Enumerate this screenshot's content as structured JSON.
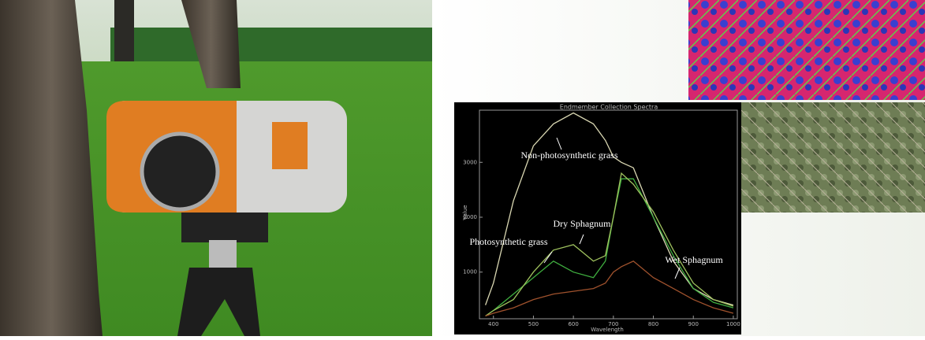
{
  "chart_data": {
    "type": "line",
    "title": "Endmember Collection Spectra",
    "x_label": "Wavelength",
    "y_label": "Value",
    "x": [
      380,
      400,
      450,
      500,
      550,
      600,
      650,
      680,
      700,
      720,
      750,
      800,
      850,
      900,
      950,
      1000
    ],
    "series": [
      {
        "name": "Non-photosynthetic grass",
        "color": "#d9d7b2",
        "values": [
          400,
          800,
          2300,
          3300,
          3700,
          3900,
          3700,
          3400,
          3100,
          3000,
          2900,
          2000,
          1200,
          700,
          500,
          400
        ]
      },
      {
        "name": "Photosynthetic grass",
        "color": "#3fae3f",
        "values": [
          200,
          300,
          600,
          900,
          1200,
          1000,
          900,
          1200,
          2000,
          2700,
          2700,
          2000,
          1300,
          700,
          450,
          350
        ]
      },
      {
        "name": "Dry Sphagnum",
        "color": "#9fc25e",
        "values": [
          200,
          300,
          500,
          1000,
          1400,
          1500,
          1200,
          1300,
          2000,
          2800,
          2600,
          2100,
          1400,
          800,
          500,
          380
        ]
      },
      {
        "name": "Wet Sphagnum",
        "color": "#a0522d",
        "values": [
          200,
          250,
          350,
          500,
          600,
          650,
          700,
          800,
          1000,
          1100,
          1200,
          900,
          700,
          500,
          350,
          250
        ]
      }
    ],
    "xlim": [
      365,
      1010
    ],
    "ylim": [
      150,
      3950
    ],
    "xticks": [
      400,
      500,
      600,
      700,
      800,
      900,
      1000
    ],
    "yticks": [
      1000,
      2000,
      3000
    ],
    "background": "#000000"
  }
}
